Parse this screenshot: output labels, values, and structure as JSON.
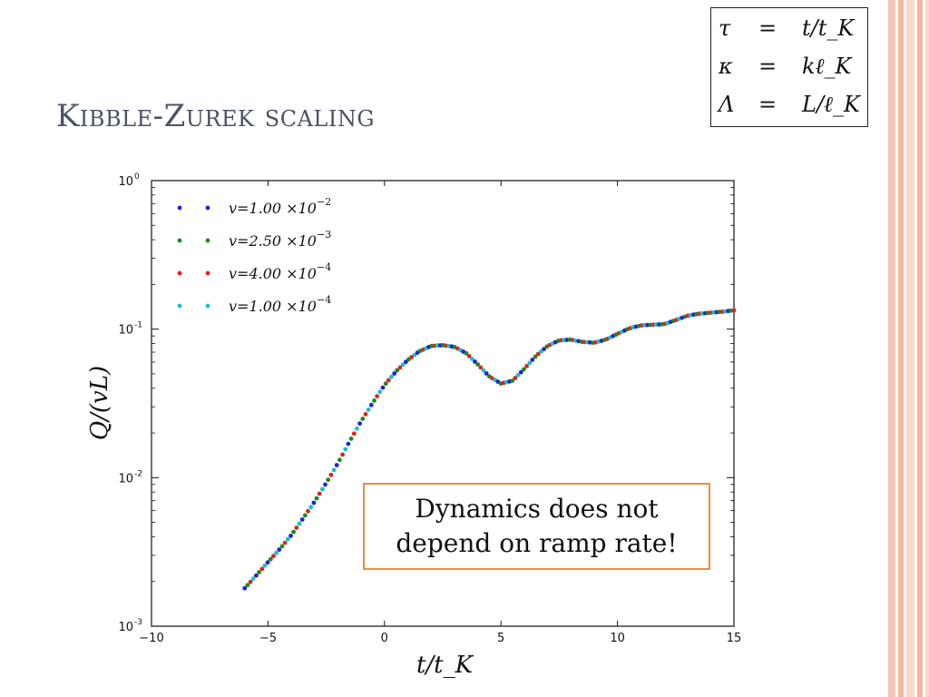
{
  "slide": {
    "title": "Kibble-Zurek scaling",
    "definitions": [
      {
        "lhs": "τ",
        "eq": "=",
        "rhs": "t/t_K"
      },
      {
        "lhs": "κ",
        "eq": "=",
        "rhs": "kℓ_K"
      },
      {
        "lhs": "Λ",
        "eq": "=",
        "rhs": "L/ℓ_K"
      }
    ],
    "note_line1": "Dynamics does not",
    "note_line2": "depend on ramp rate!"
  },
  "colors": {
    "series": [
      "#1f22d6",
      "#1a8a1a",
      "#e0221e",
      "#19c0c8"
    ],
    "title": "#4a5366",
    "note_border": "#f08a3c"
  },
  "chart_data": {
    "type": "scatter",
    "title": "",
    "xlabel": "t/t_K",
    "ylabel": "Q/(vL)",
    "xlim": [
      -10,
      15
    ],
    "ylim": [
      0.001,
      1
    ],
    "yscale": "log",
    "grid": false,
    "legend_position": "top-left",
    "xticks": [
      -10,
      -5,
      0,
      5,
      10,
      15
    ],
    "xtick_labels": [
      "−10",
      "−5",
      "0",
      "5",
      "10",
      "15"
    ],
    "yticks": [
      0.001,
      0.01,
      0.1,
      1
    ],
    "ytick_labels": [
      "10",
      "10",
      "10",
      "10"
    ],
    "ytick_exponents": [
      "-3",
      "-2",
      "-1",
      "0"
    ],
    "series": [
      {
        "name": "v=1.00 ×10^−2",
        "label_main": "v=1.00 ×10",
        "label_exp": "−2"
      },
      {
        "name": "v=2.50 ×10^−3",
        "label_main": "v=2.50 ×10",
        "label_exp": "−3"
      },
      {
        "name": "v=4.00 ×10^−4",
        "label_main": "v=4.00 ×10",
        "label_exp": "−4"
      },
      {
        "name": "v=1.00 ×10^−4",
        "label_main": "v=1.00 ×10",
        "label_exp": "−4"
      }
    ],
    "curve": {
      "x": [
        -6.0,
        -5.5,
        -5.0,
        -4.5,
        -4.0,
        -3.5,
        -3.0,
        -2.5,
        -2.0,
        -1.5,
        -1.0,
        -0.5,
        0.0,
        0.5,
        1.0,
        1.5,
        2.0,
        2.5,
        3.0,
        3.5,
        4.0,
        4.5,
        5.0,
        5.5,
        6.0,
        6.5,
        7.0,
        7.5,
        8.0,
        8.5,
        9.0,
        9.5,
        10.0,
        10.5,
        11.0,
        11.5,
        12.0,
        12.5,
        13.0,
        13.5,
        14.0,
        14.5,
        15.0
      ],
      "y": [
        0.0018,
        0.0022,
        0.0027,
        0.0033,
        0.0041,
        0.0053,
        0.0069,
        0.0092,
        0.0125,
        0.0175,
        0.024,
        0.032,
        0.042,
        0.052,
        0.062,
        0.071,
        0.077,
        0.078,
        0.076,
        0.069,
        0.058,
        0.048,
        0.043,
        0.045,
        0.054,
        0.066,
        0.077,
        0.084,
        0.085,
        0.082,
        0.081,
        0.085,
        0.093,
        0.101,
        0.106,
        0.107,
        0.108,
        0.115,
        0.123,
        0.127,
        0.129,
        0.131,
        0.134
      ]
    }
  }
}
